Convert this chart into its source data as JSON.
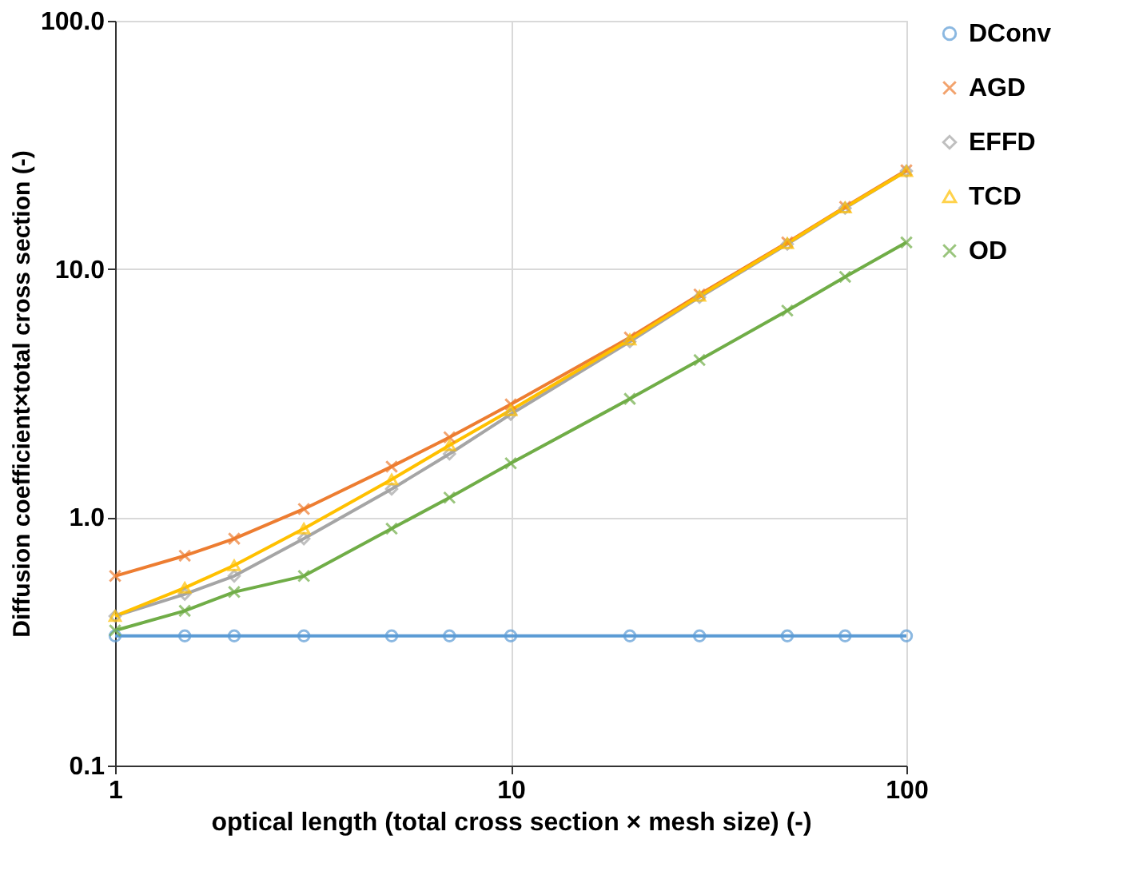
{
  "chart_data": {
    "type": "line",
    "xlabel": "optical length (total cross section × mesh size) (-)",
    "ylabel": "Diffusion coefficient×total cross section (-)",
    "x": [
      1,
      1.5,
      2,
      3,
      5,
      7,
      10,
      20,
      30,
      50,
      70,
      100
    ],
    "series": [
      {
        "name": "DConv",
        "color": "#5b9bd5",
        "marker": "circle",
        "values": [
          0.333,
          0.333,
          0.333,
          0.333,
          0.333,
          0.333,
          0.333,
          0.333,
          0.333,
          0.333,
          0.333,
          0.333
        ]
      },
      {
        "name": "AGD",
        "color": "#ed7d31",
        "marker": "cross",
        "values": [
          0.58,
          0.7,
          0.82,
          1.08,
          1.6,
          2.1,
          2.85,
          5.3,
          7.9,
          12.8,
          17.8,
          25
        ]
      },
      {
        "name": "EFFD",
        "color": "#a5a5a5",
        "marker": "diamond",
        "values": [
          0.4,
          0.49,
          0.58,
          0.82,
          1.3,
          1.8,
          2.6,
          5.1,
          7.7,
          12.6,
          17.6,
          24.8
        ]
      },
      {
        "name": "TCD",
        "color": "#ffc000",
        "marker": "triangle",
        "values": [
          0.4,
          0.52,
          0.64,
          0.9,
          1.42,
          1.95,
          2.7,
          5.2,
          7.8,
          12.7,
          17.7,
          24.8
        ]
      },
      {
        "name": "OD",
        "color": "#70ad47",
        "marker": "cross",
        "values": [
          0.35,
          0.42,
          0.5,
          0.58,
          0.9,
          1.2,
          1.65,
          3.0,
          4.3,
          6.8,
          9.3,
          12.8
        ]
      }
    ],
    "log": "xy",
    "xlim": [
      1,
      100
    ],
    "xticks": [
      1,
      10,
      100
    ],
    "ylim": [
      0.1,
      100
    ],
    "yticks": [
      {
        "value": 0.1,
        "label": "0.1"
      },
      {
        "value": 1,
        "label": "1.0"
      },
      {
        "value": 10,
        "label": "10.0"
      },
      {
        "value": 100,
        "label": "100.0"
      }
    ],
    "grid": true,
    "legend": "right",
    "line_style": "solid"
  }
}
